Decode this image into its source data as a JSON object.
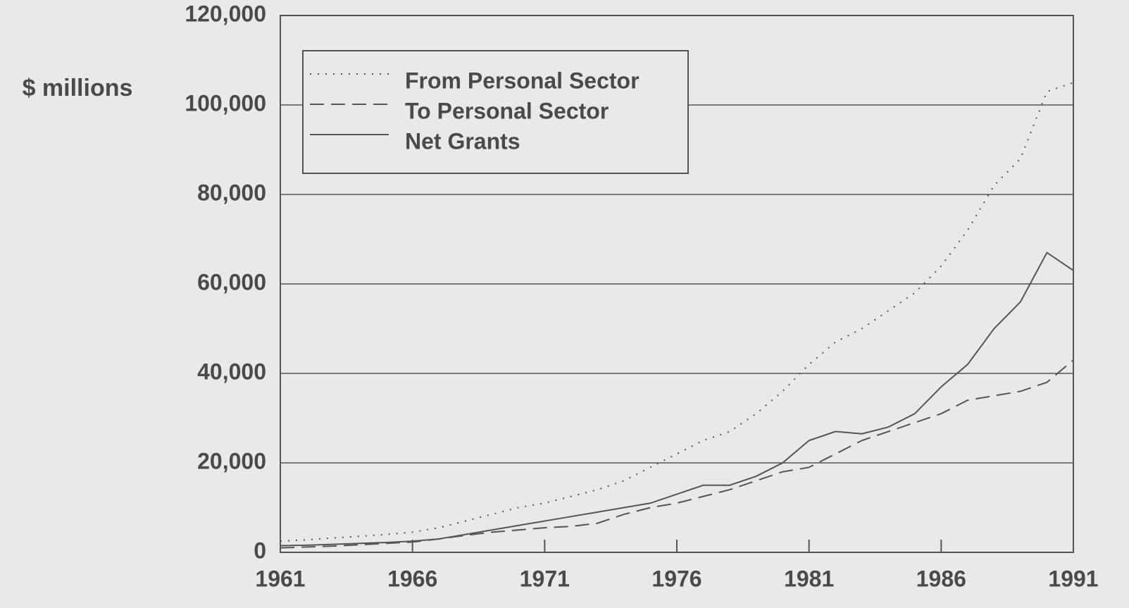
{
  "chart_data": {
    "type": "line",
    "ylabel": "$ millions",
    "x": [
      1961,
      1962,
      1963,
      1964,
      1965,
      1966,
      1967,
      1968,
      1969,
      1970,
      1971,
      1972,
      1973,
      1974,
      1975,
      1976,
      1977,
      1978,
      1979,
      1980,
      1981,
      1982,
      1983,
      1984,
      1985,
      1986,
      1987,
      1988,
      1989,
      1990,
      1991
    ],
    "series": [
      {
        "name": "From Personal Sector",
        "color": "#555555",
        "style": "dotted",
        "values": [
          2500,
          2800,
          3200,
          3600,
          4000,
          4500,
          5500,
          7000,
          8500,
          10000,
          11000,
          12500,
          14000,
          16000,
          19000,
          22000,
          25000,
          27000,
          31000,
          36000,
          42000,
          47000,
          50000,
          54000,
          58000,
          64000,
          72000,
          82000,
          88000,
          103000,
          105000
        ]
      },
      {
        "name": "To Personal Sector",
        "color": "#555555",
        "style": "dashed",
        "values": [
          1000,
          1200,
          1400,
          1700,
          2000,
          2300,
          3000,
          3800,
          4500,
          5000,
          5500,
          5800,
          6500,
          8500,
          10000,
          11000,
          12500,
          14000,
          16000,
          18000,
          19000,
          22000,
          25000,
          27000,
          29000,
          31000,
          34000,
          35000,
          36000,
          38000,
          43000
        ]
      },
      {
        "name": "Net Grants",
        "color": "#555555",
        "style": "solid",
        "values": [
          1500,
          1600,
          1800,
          2000,
          2200,
          2500,
          3000,
          4000,
          5000,
          6000,
          7000,
          8000,
          9000,
          10000,
          11000,
          13000,
          15000,
          15000,
          17000,
          20000,
          25000,
          27000,
          26500,
          28000,
          31000,
          37000,
          42000,
          50000,
          56000,
          67000,
          63000
        ]
      }
    ],
    "xlim": [
      1961,
      1991
    ],
    "xticks": [
      1961,
      1966,
      1971,
      1976,
      1981,
      1986,
      1991
    ],
    "ylim": [
      0,
      120000
    ],
    "yticks": [
      0,
      {
        "value": 20000,
        "label": "20,000"
      },
      {
        "value": 40000,
        "label": "40,000"
      },
      {
        "value": 60000,
        "label": "60,000"
      },
      {
        "value": 80000,
        "label": "80,000"
      },
      {
        "value": 100000,
        "label": "100,000"
      },
      {
        "value": 120000,
        "label": "120,000"
      }
    ],
    "grid": true,
    "legend": "upper left"
  }
}
